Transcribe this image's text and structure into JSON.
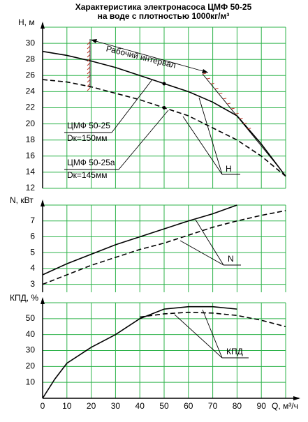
{
  "title": "Характеристика электронасоса ЦМФ 50-25",
  "subtitle": "на воде с плотностью 1000кг/м³",
  "chart_data": [
    {
      "type": "line",
      "y_label": "H, м",
      "xlim": [
        0,
        100
      ],
      "ylim": [
        12,
        32
      ],
      "yticks": [
        12,
        14,
        16,
        18,
        20,
        22,
        24,
        26,
        28,
        30
      ],
      "grid": true,
      "x": [
        0,
        10,
        20,
        30,
        40,
        50,
        60,
        70,
        80,
        90,
        100
      ],
      "series": [
        {
          "name": "ЦМФ 50-25",
          "color": "#000000",
          "dashed": false,
          "values": [
            29,
            28.5,
            27.8,
            27,
            26,
            25,
            24,
            22.7,
            21,
            17.5,
            13.5
          ]
        },
        {
          "name": "ЦМФ 50-25а",
          "color": "#000000",
          "dashed": true,
          "values": [
            25.5,
            25.2,
            24.6,
            23.8,
            23,
            22,
            21,
            19.5,
            18,
            16,
            13.5
          ]
        }
      ],
      "annotations": [
        "Рабочий интервал",
        "Dк=150мм",
        "Dк=145мм",
        "H"
      ]
    },
    {
      "type": "line",
      "y_label": "N, кВт",
      "xlim": [
        0,
        100
      ],
      "ylim": [
        2.5,
        8
      ],
      "yticks": [
        3,
        4,
        5,
        6,
        7
      ],
      "grid": true,
      "x": [
        0,
        10,
        20,
        30,
        40,
        50,
        60,
        70,
        80,
        90,
        100
      ],
      "series": [
        {
          "color": "#000000",
          "dashed": false,
          "values": [
            3.6,
            4.3,
            4.9,
            5.5,
            6.0,
            6.5,
            7.0,
            7.45,
            8.0,
            null,
            null
          ]
        },
        {
          "color": "#000000",
          "dashed": true,
          "values": [
            3.0,
            3.6,
            4.2,
            4.7,
            5.2,
            5.6,
            6.1,
            6.6,
            7.0,
            7.35,
            7.65
          ]
        }
      ],
      "annotations": [
        "N"
      ]
    },
    {
      "type": "line",
      "y_label": "КПД, %",
      "x_label": "Q, м³/ч",
      "xlim": [
        0,
        100
      ],
      "ylim": [
        0,
        60
      ],
      "xticks": [
        0,
        10,
        20,
        30,
        40,
        50,
        60,
        70,
        80,
        90
      ],
      "yticks": [
        10,
        20,
        30,
        40,
        50
      ],
      "grid": true,
      "x": [
        0,
        5,
        10,
        20,
        30,
        40,
        50,
        60,
        70,
        80,
        90,
        100
      ],
      "series": [
        {
          "color": "#000000",
          "dashed": false,
          "values": [
            0,
            12,
            22,
            32,
            40,
            50,
            56,
            57.5,
            57.5,
            56,
            null,
            null
          ]
        },
        {
          "color": "#000000",
          "dashed": true,
          "values": [
            null,
            null,
            null,
            null,
            null,
            51,
            53,
            54,
            53.5,
            52,
            49,
            45
          ]
        }
      ],
      "annotations": [
        "КПД"
      ]
    }
  ]
}
